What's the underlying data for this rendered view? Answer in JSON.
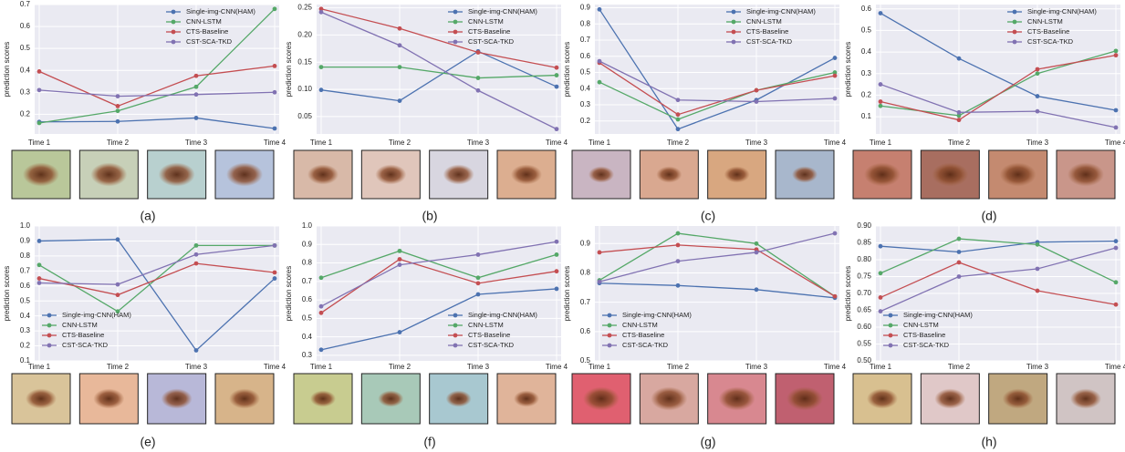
{
  "chart_data": [
    {
      "type": "line",
      "caption": "(a)",
      "ylabel": "prediction scores",
      "categories": [
        "Time 1",
        "Time 2",
        "Time 3",
        "Time 4"
      ],
      "ylim": [
        0.11,
        0.7
      ],
      "yticks": [
        0.2,
        0.3,
        0.4,
        0.5,
        0.6,
        0.7
      ],
      "grid": true,
      "legend": "upper right",
      "series": [
        {
          "name": "Single-img-CNN(HAM)",
          "color": "#4c72b0",
          "values": [
            0.165,
            0.167,
            0.183,
            0.135
          ]
        },
        {
          "name": "CNN-LSTM",
          "color": "#55a868",
          "values": [
            0.16,
            0.215,
            0.325,
            0.68
          ]
        },
        {
          "name": "CTS-Baseline",
          "color": "#c44e52",
          "values": [
            0.395,
            0.237,
            0.375,
            0.42
          ]
        },
        {
          "name": "CST-SCA-TKD",
          "color": "#8172b2",
          "values": [
            0.31,
            0.282,
            0.29,
            0.3
          ]
        }
      ]
    },
    {
      "type": "line",
      "caption": "(b)",
      "ylabel": "prediction scores",
      "categories": [
        "Time 1",
        "Time 2",
        "Time 3",
        "Time 4"
      ],
      "ylim": [
        0.018,
        0.256
      ],
      "yticks": [
        0.05,
        {
          "value": 0.1,
          "label": "0.10"
        },
        0.15,
        {
          "value": 0.2,
          "label": "0.20"
        },
        0.25
      ],
      "grid": true,
      "legend": "upper right",
      "series": [
        {
          "name": "Single-img-CNN(HAM)",
          "color": "#4c72b0",
          "values": [
            0.099,
            0.079,
            0.17,
            0.105
          ]
        },
        {
          "name": "CNN-LSTM",
          "color": "#55a868",
          "values": [
            0.141,
            0.141,
            0.121,
            0.126
          ]
        },
        {
          "name": "CTS-Baseline",
          "color": "#c44e52",
          "values": [
            0.248,
            0.212,
            0.168,
            0.14
          ]
        },
        {
          "name": "CST-SCA-TKD",
          "color": "#8172b2",
          "values": [
            0.242,
            0.181,
            0.098,
            0.027
          ]
        }
      ]
    },
    {
      "type": "line",
      "caption": "(c)",
      "ylabel": "prediction scores",
      "categories": [
        "Time 1",
        "Time 2",
        "Time 3",
        "Time 4"
      ],
      "ylim": [
        0.12,
        0.92
      ],
      "yticks": [
        0.2,
        0.3,
        0.4,
        0.5,
        0.6,
        0.7,
        0.8,
        0.9
      ],
      "grid": true,
      "legend": "upper right",
      "series": [
        {
          "name": "Single-img-CNN(HAM)",
          "color": "#4c72b0",
          "values": [
            0.89,
            0.15,
            0.33,
            0.59
          ]
        },
        {
          "name": "CNN-LSTM",
          "color": "#55a868",
          "values": [
            0.44,
            0.21,
            0.39,
            0.5
          ]
        },
        {
          "name": "CTS-Baseline",
          "color": "#c44e52",
          "values": [
            0.56,
            0.24,
            0.39,
            0.48
          ]
        },
        {
          "name": "CST-SCA-TKD",
          "color": "#8172b2",
          "values": [
            0.57,
            0.33,
            0.32,
            0.34
          ]
        }
      ]
    },
    {
      "type": "line",
      "caption": "(d)",
      "ylabel": "prediction scores",
      "categories": [
        "Time 1",
        "Time 2",
        "Time 3",
        "Time 4"
      ],
      "ylim": [
        0.02,
        0.62
      ],
      "yticks": [
        0.1,
        0.2,
        0.3,
        0.4,
        0.5,
        0.6
      ],
      "grid": true,
      "legend": "upper right",
      "series": [
        {
          "name": "Single-img-CNN(HAM)",
          "color": "#4c72b0",
          "values": [
            0.58,
            0.37,
            0.195,
            0.13
          ]
        },
        {
          "name": "CNN-LSTM",
          "color": "#55a868",
          "values": [
            0.15,
            0.105,
            0.3,
            0.405
          ]
        },
        {
          "name": "CTS-Baseline",
          "color": "#c44e52",
          "values": [
            0.17,
            0.085,
            0.32,
            0.385
          ]
        },
        {
          "name": "CST-SCA-TKD",
          "color": "#8172b2",
          "values": [
            0.25,
            0.12,
            0.125,
            0.05
          ]
        }
      ]
    },
    {
      "type": "line",
      "caption": "(e)",
      "ylabel": "prediction scores",
      "categories": [
        "Time 1",
        "Time 2",
        "Time 3",
        "Time 4"
      ],
      "ylim": [
        0.1,
        1.0
      ],
      "yticks": [
        0.1,
        0.2,
        0.3,
        0.4,
        0.5,
        0.6,
        0.7,
        0.8,
        0.9,
        {
          "value": 1.0,
          "label": "1.0"
        }
      ],
      "grid": true,
      "legend": "lower left",
      "series": [
        {
          "name": "Single-img-CNN(HAM)",
          "color": "#4c72b0",
          "values": [
            0.9,
            0.91,
            0.17,
            0.65
          ]
        },
        {
          "name": "CNN-LSTM",
          "color": "#55a868",
          "values": [
            0.74,
            0.43,
            0.87,
            0.87
          ]
        },
        {
          "name": "CTS-Baseline",
          "color": "#c44e52",
          "values": [
            0.65,
            0.54,
            0.75,
            0.69
          ]
        },
        {
          "name": "CST-SCA-TKD",
          "color": "#8172b2",
          "values": [
            0.62,
            0.61,
            0.81,
            0.87
          ]
        }
      ]
    },
    {
      "type": "line",
      "caption": "(f)",
      "ylabel": "prediction scores",
      "categories": [
        "Time 1",
        "Time 2",
        "Time 3",
        "Time 4"
      ],
      "ylim": [
        0.27,
        1.0
      ],
      "yticks": [
        0.3,
        0.4,
        0.5,
        0.6,
        0.7,
        0.8,
        0.9,
        {
          "value": 1.0,
          "label": "1.0"
        }
      ],
      "grid": true,
      "legend": "lower right",
      "series": [
        {
          "name": "Single-img-CNN(HAM)",
          "color": "#4c72b0",
          "values": [
            0.33,
            0.425,
            0.63,
            0.66
          ]
        },
        {
          "name": "CNN-LSTM",
          "color": "#55a868",
          "values": [
            0.72,
            0.865,
            0.72,
            0.845
          ]
        },
        {
          "name": "CTS-Baseline",
          "color": "#c44e52",
          "values": [
            0.53,
            0.82,
            0.69,
            0.755
          ]
        },
        {
          "name": "CST-SCA-TKD",
          "color": "#8172b2",
          "values": [
            0.565,
            0.79,
            0.845,
            0.915
          ]
        }
      ]
    },
    {
      "type": "line",
      "caption": "(g)",
      "ylabel": "prediction scores",
      "categories": [
        "Time 1",
        "Time 2",
        "Time 3",
        "Time 4"
      ],
      "ylim": [
        0.5,
        0.96
      ],
      "yticks": [
        0.5,
        0.6,
        0.7,
        0.8,
        0.9
      ],
      "grid": true,
      "legend": "lower left",
      "series": [
        {
          "name": "Single-img-CNN(HAM)",
          "color": "#4c72b0",
          "values": [
            0.765,
            0.757,
            0.743,
            0.715
          ]
        },
        {
          "name": "CNN-LSTM",
          "color": "#55a868",
          "values": [
            0.775,
            0.935,
            0.9,
            0.72
          ]
        },
        {
          "name": "CTS-Baseline",
          "color": "#c44e52",
          "values": [
            0.87,
            0.895,
            0.88,
            0.72
          ]
        },
        {
          "name": "CST-SCA-TKD",
          "color": "#8172b2",
          "values": [
            0.77,
            0.84,
            0.87,
            0.935
          ]
        }
      ]
    },
    {
      "type": "line",
      "caption": "(h)",
      "ylabel": "prediction scores",
      "categories": [
        "Time 1",
        "Time 2",
        "Time 3",
        "Time 4"
      ],
      "ylim": [
        0.5,
        0.9
      ],
      "yticks": [
        {
          "value": 0.5,
          "label": "0.50"
        },
        0.55,
        {
          "value": 0.6,
          "label": "0.60"
        },
        0.65,
        {
          "value": 0.7,
          "label": "0.70"
        },
        0.75,
        {
          "value": 0.8,
          "label": "0.80"
        },
        0.85,
        {
          "value": 0.9,
          "label": "0.90"
        }
      ],
      "grid": true,
      "legend": "lower left",
      "series": [
        {
          "name": "Single-img-CNN(HAM)",
          "color": "#4c72b0",
          "values": [
            0.84,
            0.823,
            0.852,
            0.855
          ]
        },
        {
          "name": "CNN-LSTM",
          "color": "#55a868",
          "values": [
            0.76,
            0.862,
            0.845,
            0.733
          ]
        },
        {
          "name": "CTS-Baseline",
          "color": "#c44e52",
          "values": [
            0.688,
            0.792,
            0.708,
            0.667
          ]
        },
        {
          "name": "CST-SCA-TKD",
          "color": "#8172b2",
          "values": [
            0.647,
            0.75,
            0.773,
            0.835
          ]
        }
      ]
    }
  ]
}
